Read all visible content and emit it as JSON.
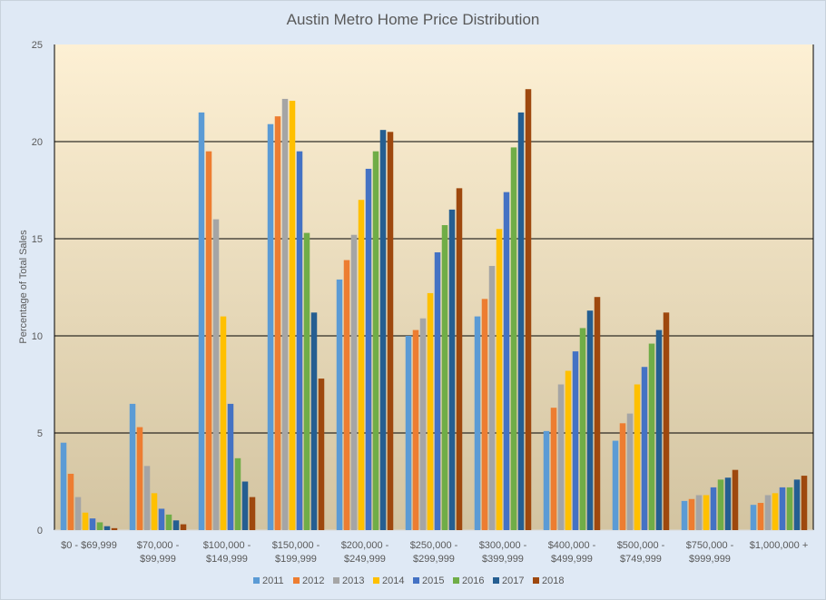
{
  "chart_data": {
    "type": "bar",
    "title": "Austin Metro Home Price Distribution",
    "xlabel": "",
    "ylabel": "Percentage of Total Sales",
    "ylim": [
      0,
      25
    ],
    "yticks": [
      0,
      5,
      10,
      15,
      20,
      25
    ],
    "grid": true,
    "legend_position": "bottom",
    "categories": [
      [
        "$0 - $69,999"
      ],
      [
        "$70,000 -",
        "$99,999"
      ],
      [
        "$100,000 -",
        "$149,999"
      ],
      [
        "$150,000 -",
        "$199,999"
      ],
      [
        "$200,000 -",
        "$249,999"
      ],
      [
        "$250,000 -",
        "$299,999"
      ],
      [
        "$300,000 -",
        "$399,999"
      ],
      [
        "$400,000 -",
        "$499,999"
      ],
      [
        "$500,000 -",
        "$749,999"
      ],
      [
        "$750,000 -",
        "$999,999"
      ],
      [
        "$1,000,000 +"
      ]
    ],
    "series": [
      {
        "name": "2011",
        "color": "#5b9bd5",
        "values": [
          4.5,
          6.5,
          21.5,
          20.9,
          12.9,
          10.0,
          11.0,
          5.1,
          4.6,
          1.5,
          1.3
        ]
      },
      {
        "name": "2012",
        "color": "#ed7d31",
        "values": [
          2.9,
          5.3,
          19.5,
          21.3,
          13.9,
          10.3,
          11.9,
          6.3,
          5.5,
          1.6,
          1.4
        ]
      },
      {
        "name": "2013",
        "color": "#a5a5a5",
        "values": [
          1.7,
          3.3,
          16.0,
          22.2,
          15.2,
          10.9,
          13.6,
          7.5,
          6.0,
          1.8,
          1.8
        ]
      },
      {
        "name": "2014",
        "color": "#ffc000",
        "values": [
          0.9,
          1.9,
          11.0,
          22.1,
          17.0,
          12.2,
          15.5,
          8.2,
          7.5,
          1.8,
          1.9
        ]
      },
      {
        "name": "2015",
        "color": "#4472c4",
        "values": [
          0.6,
          1.1,
          6.5,
          19.5,
          18.6,
          14.3,
          17.4,
          9.2,
          8.4,
          2.2,
          2.2
        ]
      },
      {
        "name": "2016",
        "color": "#70ad47",
        "values": [
          0.4,
          0.8,
          3.7,
          15.3,
          19.5,
          15.7,
          19.7,
          10.4,
          9.6,
          2.6,
          2.2
        ]
      },
      {
        "name": "2017",
        "color": "#255e91",
        "values": [
          0.2,
          0.5,
          2.5,
          11.2,
          20.6,
          16.5,
          21.5,
          11.3,
          10.3,
          2.7,
          2.6
        ]
      },
      {
        "name": "2018",
        "color": "#9e480e",
        "values": [
          0.1,
          0.3,
          1.7,
          7.8,
          20.5,
          17.6,
          22.7,
          12.0,
          11.2,
          3.1,
          2.8
        ]
      }
    ]
  }
}
